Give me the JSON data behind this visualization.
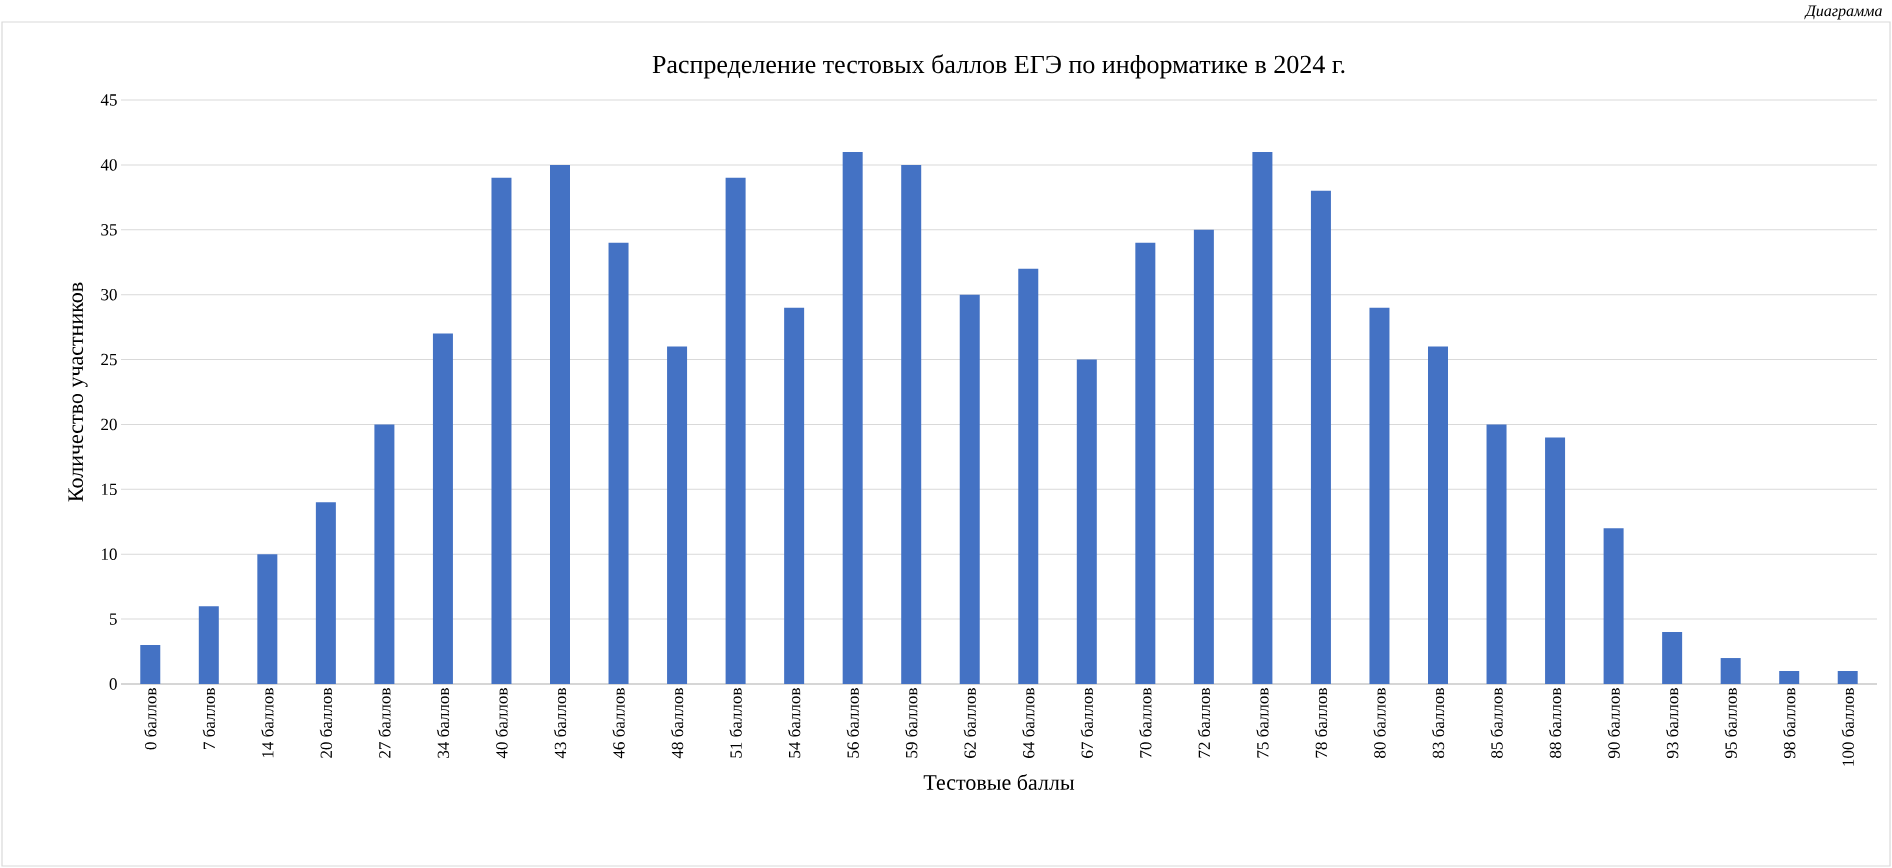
{
  "chart_data": {
    "type": "bar",
    "title": "Распределение тестовых баллов ЕГЭ по информатике в 2024 г.",
    "xlabel": "Тестовые баллы",
    "ylabel": "Количество участников",
    "annotations": [
      "Диаграмма"
    ],
    "categories": [
      "0 баллов",
      "7 баллов",
      "14 баллов",
      "20 баллов",
      "27 баллов",
      "34 баллов",
      "40 баллов",
      "43 баллов",
      "46 баллов",
      "48 баллов",
      "51 баллов",
      "54 баллов",
      "56 баллов",
      "59 баллов",
      "62 баллов",
      "64 баллов",
      "67 баллов",
      "70 баллов",
      "72 баллов",
      "75 баллов",
      "78 баллов",
      "80 баллов",
      "83 баллов",
      "85 баллов",
      "88 баллов",
      "90 баллов",
      "93 баллов",
      "95 баллов",
      "98 баллов",
      "100 баллов"
    ],
    "values": [
      3,
      6,
      10,
      14,
      20,
      27,
      39,
      40,
      34,
      26,
      39,
      29,
      41,
      40,
      30,
      32,
      25,
      34,
      35,
      41,
      38,
      29,
      26,
      20,
      19,
      12,
      4,
      2,
      1,
      1
    ],
    "color": "#4472c4",
    "ylim": [
      0,
      45
    ],
    "yticks": [
      0,
      5,
      10,
      15,
      20,
      25,
      30,
      35,
      40,
      45
    ],
    "grid": "y"
  }
}
